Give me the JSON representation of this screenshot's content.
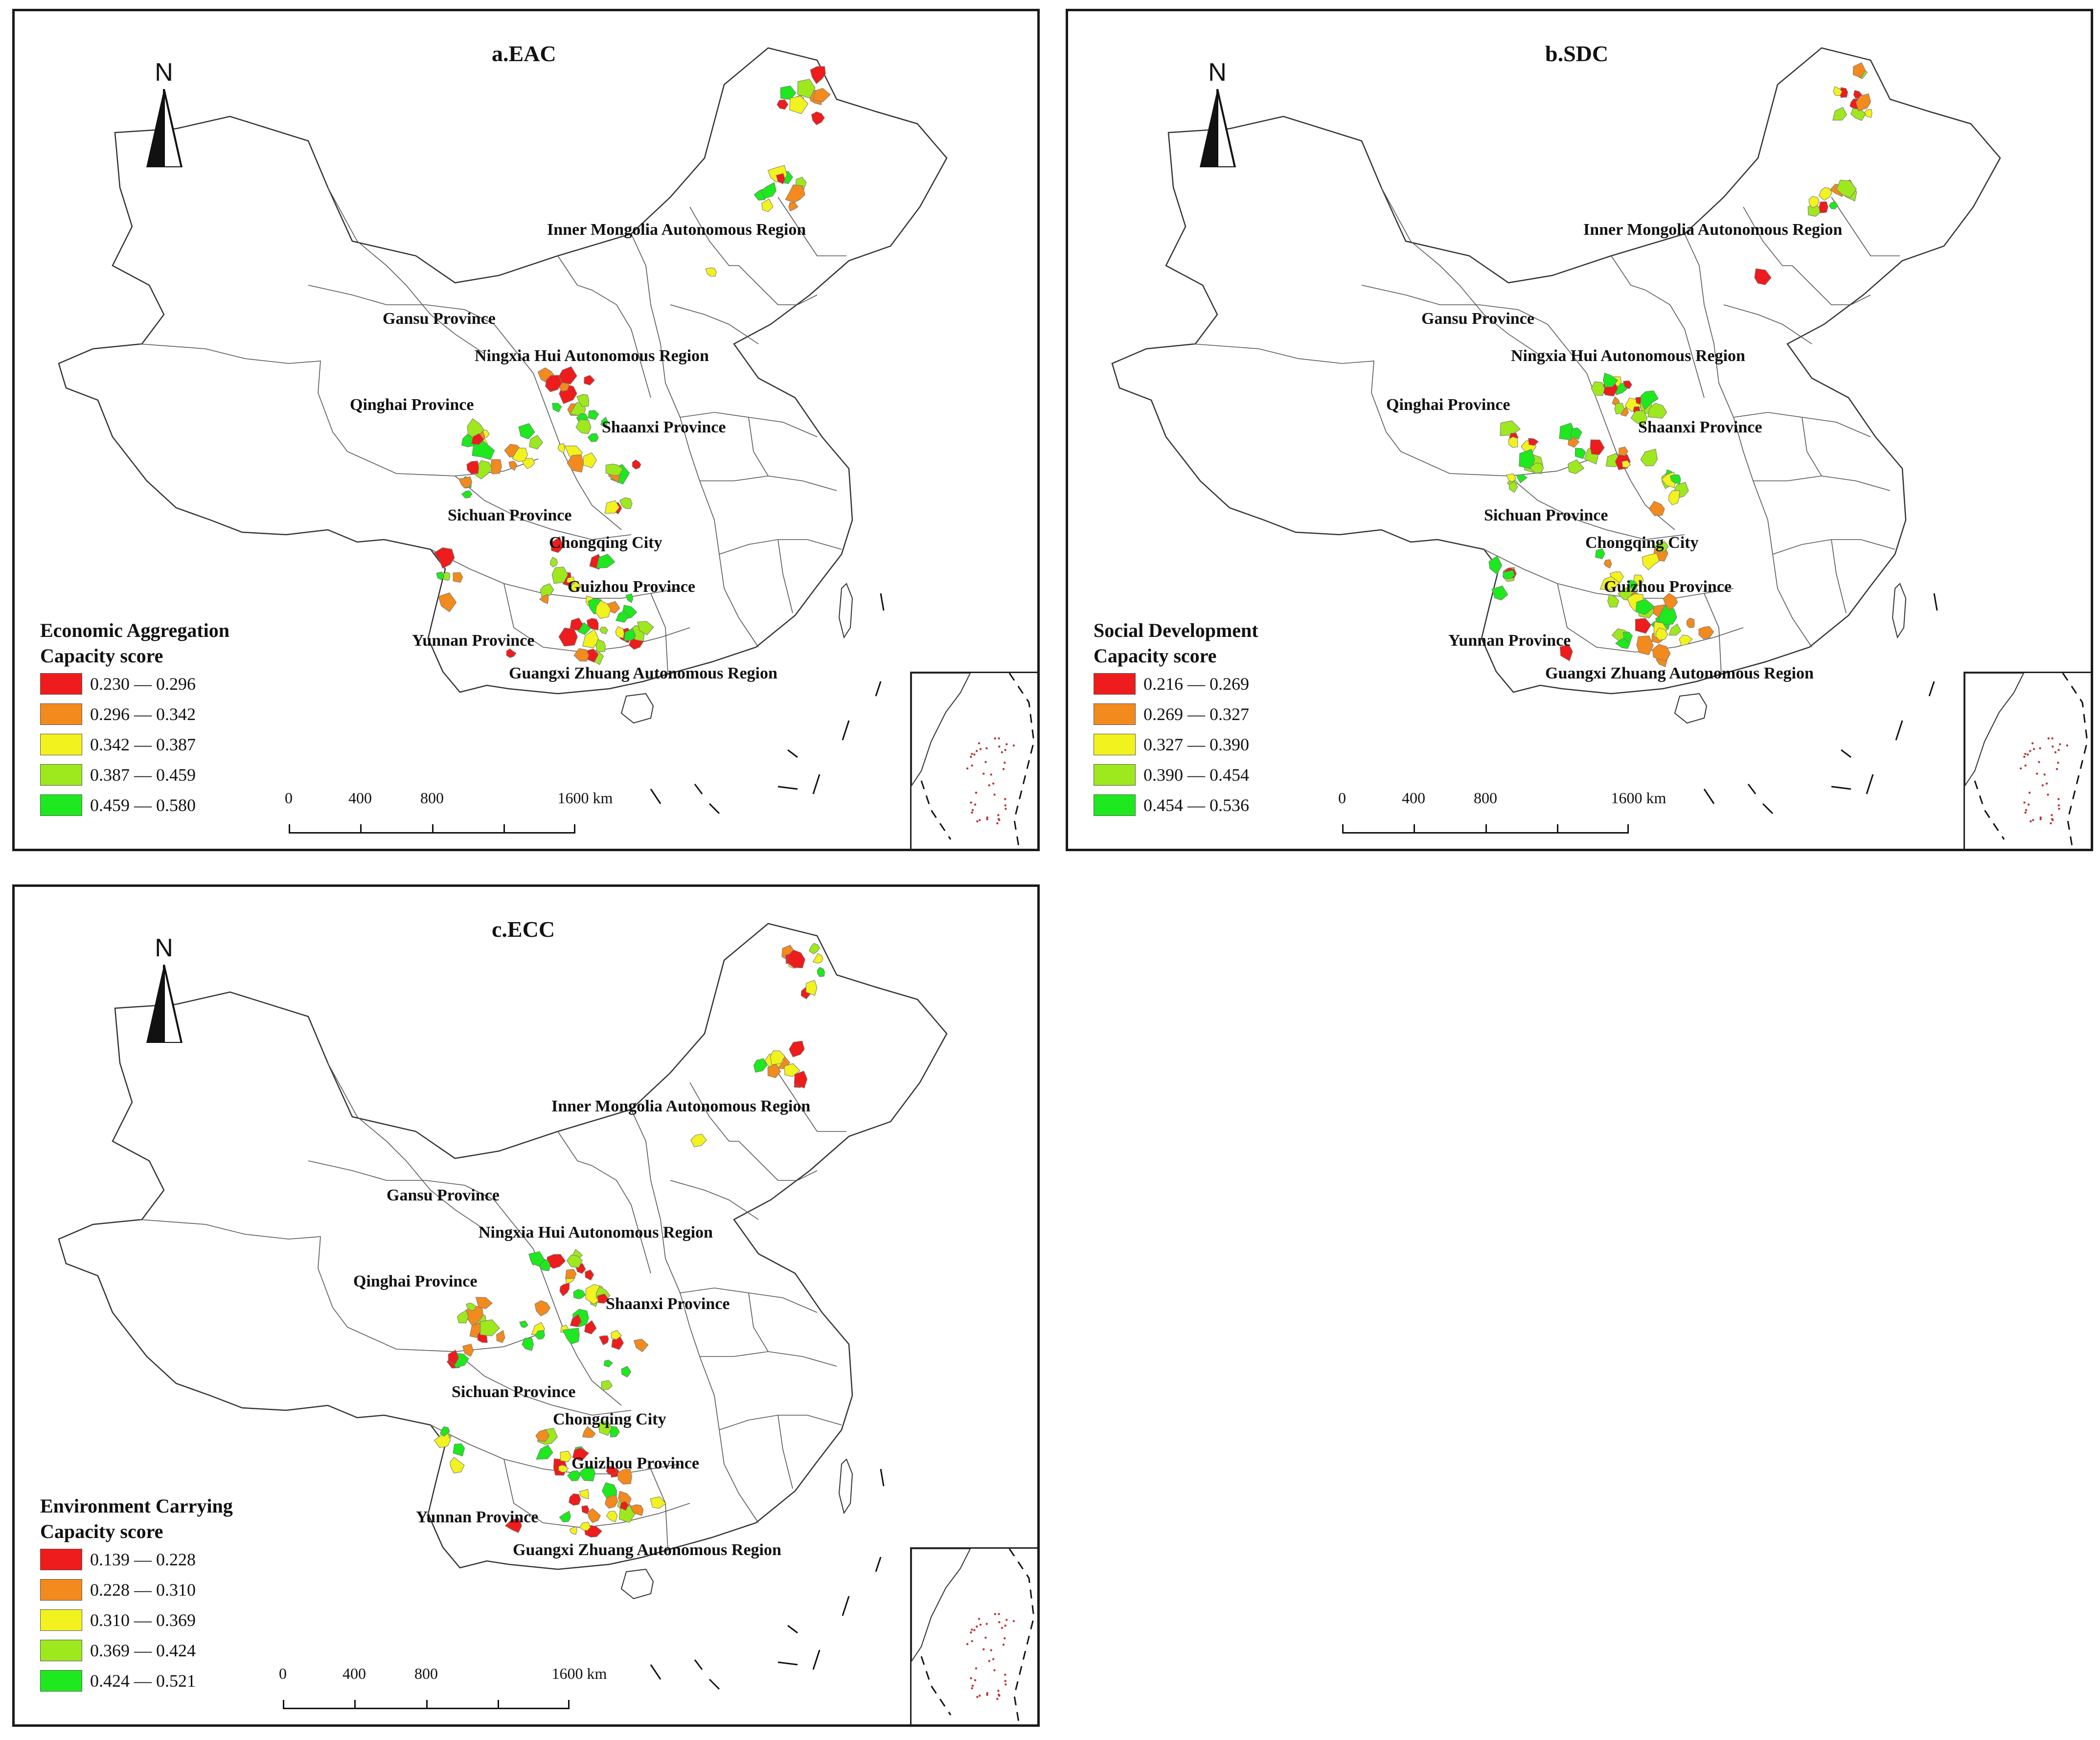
{
  "panels": [
    {
      "title": "a.EAC",
      "north": "N",
      "legend_title": "Economic Aggregation\nCapacity score",
      "legend": [
        {
          "range": "0.230 — 0.296",
          "color": "#ee1c1c"
        },
        {
          "range": "0.296 — 0.342",
          "color": "#f28a1e"
        },
        {
          "range": "0.342 — 0.387",
          "color": "#f2f21e"
        },
        {
          "range": "0.387 — 0.459",
          "color": "#9ee81e"
        },
        {
          "range": "0.459 — 0.580",
          "color": "#1ee81e"
        }
      ],
      "scale": {
        "ticks": [
          "0",
          "400",
          "800",
          "1600 km"
        ]
      },
      "labels": {
        "inner_mongolia": "Inner Mongolia Autonomous Region",
        "gansu": "Gansu Province",
        "ningxia": "Ningxia Hui Autonomous Region",
        "qinghai": "Qinghai Province",
        "shaanxi": "Shaanxi Province",
        "sichuan": "Sichuan Province",
        "chongqing": "Chongqing City",
        "guizhou": "Guizhou Province",
        "yunnan": "Yunnan Province",
        "guangxi": "Guangxi Zhuang Autonomous Region"
      }
    },
    {
      "title": "b.SDC",
      "north": "N",
      "legend_title": "Social Development\nCapacity score",
      "legend": [
        {
          "range": "0.216 — 0.269",
          "color": "#ee1c1c"
        },
        {
          "range": "0.269 — 0.327",
          "color": "#f28a1e"
        },
        {
          "range": "0.327 — 0.390",
          "color": "#f2f21e"
        },
        {
          "range": "0.390 — 0.454",
          "color": "#9ee81e"
        },
        {
          "range": "0.454 — 0.536",
          "color": "#1ee81e"
        }
      ],
      "scale": {
        "ticks": [
          "0",
          "400",
          "800",
          "1600 km"
        ]
      },
      "labels": {
        "inner_mongolia": "Inner Mongolia Autonomous Region",
        "gansu": "Gansu Province",
        "ningxia": "Ningxia Hui Autonomous Region",
        "qinghai": "Qinghai Province",
        "shaanxi": "Shaanxi Province",
        "sichuan": "Sichuan Province",
        "chongqing": "Chongqing City",
        "guizhou": "Guizhou Province",
        "yunnan": "Yunnan Province",
        "guangxi": "Guangxi Zhuang Autonomous Region"
      }
    },
    {
      "title": "c.ECC",
      "north": "N",
      "legend_title": "Environment Carrying\nCapacity score",
      "legend": [
        {
          "range": "0.139 — 0.228",
          "color": "#ee1c1c"
        },
        {
          "range": "0.228 — 0.310",
          "color": "#f28a1e"
        },
        {
          "range": "0.310 — 0.369",
          "color": "#f2f21e"
        },
        {
          "range": "0.369 — 0.424",
          "color": "#9ee81e"
        },
        {
          "range": "0.424 — 0.521",
          "color": "#1ee81e"
        }
      ],
      "scale": {
        "ticks": [
          "0",
          "400",
          "800",
          "1600 km"
        ]
      },
      "labels": {
        "inner_mongolia": "Inner Mongolia Autonomous Region",
        "gansu": "Gansu Province",
        "ningxia": "Ningxia Hui Autonomous Region",
        "qinghai": "Qinghai Province",
        "shaanxi": "Shaanxi Province",
        "sichuan": "Sichuan Province",
        "chongqing": "Chongqing City",
        "guizhou": "Guizhou Province",
        "yunnan": "Yunnan Province",
        "guangxi": "Guangxi Zhuang Autonomous Region"
      }
    }
  ]
}
